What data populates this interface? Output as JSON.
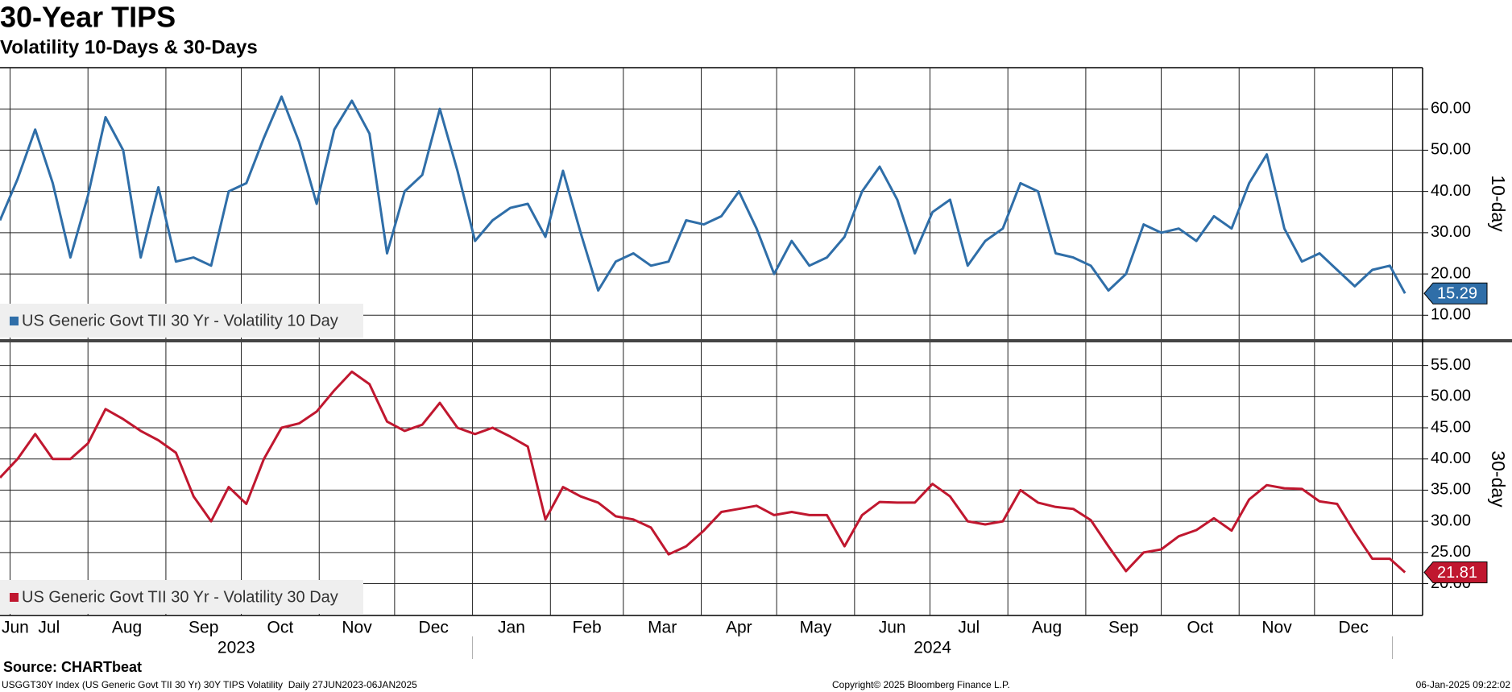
{
  "chart_data": [
    {
      "type": "line",
      "title": "30-Year TIPS",
      "subtitle": "Volatility 10-Days & 30-Days",
      "y_axis_label": "10-day",
      "x": [
        "2023-06-27",
        "2023-07-04",
        "2023-07-11",
        "2023-07-18",
        "2023-07-25",
        "2023-08-01",
        "2023-08-08",
        "2023-08-15",
        "2023-08-22",
        "2023-08-29",
        "2023-09-05",
        "2023-09-12",
        "2023-09-19",
        "2023-09-26",
        "2023-10-03",
        "2023-10-10",
        "2023-10-17",
        "2023-10-24",
        "2023-10-31",
        "2023-11-07",
        "2023-11-14",
        "2023-11-21",
        "2023-11-28",
        "2023-12-05",
        "2023-12-12",
        "2023-12-19",
        "2023-12-26",
        "2024-01-02",
        "2024-01-09",
        "2024-01-16",
        "2024-01-23",
        "2024-01-30",
        "2024-02-06",
        "2024-02-13",
        "2024-02-20",
        "2024-02-27",
        "2024-03-05",
        "2024-03-12",
        "2024-03-19",
        "2024-03-26",
        "2024-04-02",
        "2024-04-09",
        "2024-04-16",
        "2024-04-23",
        "2024-04-30",
        "2024-05-07",
        "2024-05-14",
        "2024-05-21",
        "2024-05-28",
        "2024-06-04",
        "2024-06-11",
        "2024-06-18",
        "2024-06-25",
        "2024-07-02",
        "2024-07-09",
        "2024-07-16",
        "2024-07-23",
        "2024-07-30",
        "2024-08-06",
        "2024-08-13",
        "2024-08-20",
        "2024-08-27",
        "2024-09-03",
        "2024-09-10",
        "2024-09-17",
        "2024-09-24",
        "2024-10-01",
        "2024-10-08",
        "2024-10-15",
        "2024-10-22",
        "2024-10-29",
        "2024-11-05",
        "2024-11-12",
        "2024-11-19",
        "2024-11-26",
        "2024-12-03",
        "2024-12-10",
        "2024-12-17",
        "2024-12-24",
        "2024-12-31",
        "2025-01-06"
      ],
      "xlim": [
        "2023-06-27",
        "2025-01-13"
      ],
      "ylim": [
        4.2,
        70
      ],
      "yticks": [
        {
          "value": 10,
          "label": "10.00"
        },
        {
          "value": 20,
          "label": "20.00"
        },
        {
          "value": 30,
          "label": "30.00"
        },
        {
          "value": 40,
          "label": "40.00"
        },
        {
          "value": 50,
          "label": "50.00"
        },
        {
          "value": 60,
          "label": "60.00"
        }
      ],
      "grid": true,
      "legend": "lower left",
      "series": [
        {
          "name": "US Generic Govt TII 30 Yr - Volatility 10 Day",
          "color": "#2f6ea8",
          "values": [
            33,
            43,
            55,
            42,
            24,
            39,
            58,
            50,
            24,
            41,
            23,
            24,
            22,
            40,
            42,
            53,
            63,
            52,
            37,
            55,
            62,
            54,
            25,
            40,
            44,
            60,
            45,
            28,
            33,
            36,
            37,
            29,
            45,
            30,
            16,
            23,
            25,
            22,
            23,
            33,
            32,
            34,
            40,
            31,
            20,
            28,
            22,
            24,
            29,
            40,
            46,
            38,
            25,
            35,
            38,
            22,
            28,
            31,
            42,
            40,
            25,
            24,
            22,
            16,
            20,
            32,
            30,
            31,
            28,
            34,
            31,
            42,
            49,
            31,
            23,
            25,
            21,
            17,
            21,
            22,
            15.29
          ]
        }
      ]
    },
    {
      "type": "line",
      "y_axis_label": "30-day",
      "x": [
        "2023-06-27",
        "2023-07-04",
        "2023-07-11",
        "2023-07-18",
        "2023-07-25",
        "2023-08-01",
        "2023-08-08",
        "2023-08-15",
        "2023-08-22",
        "2023-08-29",
        "2023-09-05",
        "2023-09-12",
        "2023-09-19",
        "2023-09-26",
        "2023-10-03",
        "2023-10-10",
        "2023-10-17",
        "2023-10-24",
        "2023-10-31",
        "2023-11-07",
        "2023-11-14",
        "2023-11-21",
        "2023-11-28",
        "2023-12-05",
        "2023-12-12",
        "2023-12-19",
        "2023-12-26",
        "2024-01-02",
        "2024-01-09",
        "2024-01-16",
        "2024-01-23",
        "2024-01-30",
        "2024-02-06",
        "2024-02-13",
        "2024-02-20",
        "2024-02-27",
        "2024-03-05",
        "2024-03-12",
        "2024-03-19",
        "2024-03-26",
        "2024-04-02",
        "2024-04-09",
        "2024-04-16",
        "2024-04-23",
        "2024-04-30",
        "2024-05-07",
        "2024-05-14",
        "2024-05-21",
        "2024-05-28",
        "2024-06-04",
        "2024-06-11",
        "2024-06-18",
        "2024-06-25",
        "2024-07-02",
        "2024-07-09",
        "2024-07-16",
        "2024-07-23",
        "2024-07-30",
        "2024-08-06",
        "2024-08-13",
        "2024-08-20",
        "2024-08-27",
        "2024-09-03",
        "2024-09-10",
        "2024-09-17",
        "2024-09-24",
        "2024-10-01",
        "2024-10-08",
        "2024-10-15",
        "2024-10-22",
        "2024-10-29",
        "2024-11-05",
        "2024-11-12",
        "2024-11-19",
        "2024-11-26",
        "2024-12-03",
        "2024-12-10",
        "2024-12-17",
        "2024-12-24",
        "2024-12-31",
        "2025-01-06"
      ],
      "xlim": [
        "2023-06-27",
        "2025-01-13"
      ],
      "xticks": [
        {
          "value": "2023-06-01",
          "label": "Jun"
        },
        {
          "value": "2023-07-01",
          "label": "Jul"
        },
        {
          "value": "2023-08-01",
          "label": "Aug"
        },
        {
          "value": "2023-09-01",
          "label": "Sep"
        },
        {
          "value": "2023-10-01",
          "label": "Oct"
        },
        {
          "value": "2023-11-01",
          "label": "Nov"
        },
        {
          "value": "2023-12-01",
          "label": "Dec"
        },
        {
          "value": "2024-01-01",
          "label": "Jan"
        },
        {
          "value": "2024-02-01",
          "label": "Feb"
        },
        {
          "value": "2024-03-01",
          "label": "Mar"
        },
        {
          "value": "2024-04-01",
          "label": "Apr"
        },
        {
          "value": "2024-05-01",
          "label": "May"
        },
        {
          "value": "2024-06-01",
          "label": "Jun"
        },
        {
          "value": "2024-07-01",
          "label": "Jul"
        },
        {
          "value": "2024-08-01",
          "label": "Aug"
        },
        {
          "value": "2024-09-01",
          "label": "Sep"
        },
        {
          "value": "2024-10-01",
          "label": "Oct"
        },
        {
          "value": "2024-11-01",
          "label": "Nov"
        },
        {
          "value": "2024-12-01",
          "label": "Dec"
        },
        {
          "value": "2025-01-01",
          "label": null
        }
      ],
      "years": [
        "2023",
        "2024"
      ],
      "ylim": [
        14.9,
        58.7
      ],
      "yticks": [
        {
          "value": 20,
          "label": "20.00"
        },
        {
          "value": 25,
          "label": "25.00"
        },
        {
          "value": 30,
          "label": "30.00"
        },
        {
          "value": 35,
          "label": "35.00"
        },
        {
          "value": 40,
          "label": "40.00"
        },
        {
          "value": 45,
          "label": "45.00"
        },
        {
          "value": 50,
          "label": "50.00"
        },
        {
          "value": 55,
          "label": "55.00"
        }
      ],
      "grid": true,
      "legend": "lower left",
      "series": [
        {
          "name": "US Generic Govt TII 30 Yr - Volatility 30 Day",
          "color": "#c0172f",
          "values": [
            37,
            40,
            44,
            40,
            40,
            42.5,
            48,
            46.4,
            44.5,
            43,
            41,
            34,
            30,
            35.5,
            32.8,
            40,
            45,
            45.7,
            47.6,
            51,
            54,
            52,
            46,
            44.5,
            45.5,
            49,
            45,
            44,
            45,
            43.6,
            42,
            30.3,
            35.5,
            34,
            33,
            30.8,
            30.3,
            29,
            24.7,
            26,
            28.5,
            31.5,
            32,
            32.5,
            31,
            31.5,
            31,
            31,
            26,
            31,
            33.1,
            33,
            33,
            36,
            34,
            30,
            29.5,
            30,
            35,
            33,
            32.3,
            32,
            30.2,
            26,
            22,
            25,
            25.5,
            27.6,
            28.6,
            30.5,
            28.5,
            33.5,
            35.8,
            35.3,
            35.2,
            33.2,
            32.8,
            28.2,
            24,
            24,
            21.81
          ]
        }
      ]
    }
  ],
  "footer": {
    "source": "Source: CHARTbeat",
    "description": "USGGT30Y Index (US Generic Govt TII 30 Yr) 30Y TIPS Volatility  Daily 27JUN2023-06JAN2025",
    "copyright": "Copyright© 2025 Bloomberg Finance L.P.",
    "timestamp": "06-Jan-2025 09:22:02"
  }
}
